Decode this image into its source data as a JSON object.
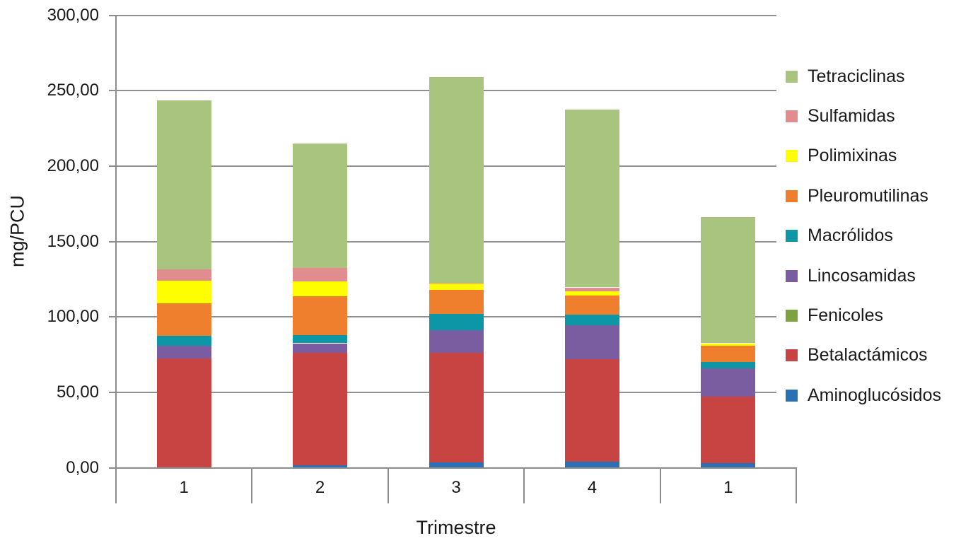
{
  "chart_data": {
    "type": "bar",
    "stacked": true,
    "title": "",
    "xlabel": "Trimestre",
    "ylabel": "mg/PCU",
    "ylim": [
      0,
      300
    ],
    "ytick_step": 50,
    "ytick_labels": [
      "0,00",
      "50,00",
      "100,00",
      "150,00",
      "200,00",
      "250,00",
      "300,00"
    ],
    "grid": true,
    "categories": [
      "1",
      "2",
      "3",
      "4",
      "1"
    ],
    "series": [
      {
        "name": "Aminoglucósidos",
        "color": "#2B70B5",
        "values": [
          0,
          1.5,
          3.5,
          4,
          3
        ]
      },
      {
        "name": "Betalactámicos",
        "color": "#C74442",
        "values": [
          72.5,
          74.5,
          72.5,
          68,
          44
        ]
      },
      {
        "name": "Fenicoles",
        "color": "#7CA33E",
        "values": [
          0,
          0,
          0,
          0,
          0
        ]
      },
      {
        "name": "Lincosamidas",
        "color": "#7A5CA1",
        "values": [
          8.5,
          6.5,
          15,
          22.5,
          19
        ]
      },
      {
        "name": "Macrólidos",
        "color": "#0D96A6",
        "values": [
          6.5,
          5.5,
          11,
          7,
          4
        ]
      },
      {
        "name": "Pleuromutilinas",
        "color": "#EF7F2C",
        "values": [
          21.5,
          25.5,
          16,
          12.5,
          11
        ]
      },
      {
        "name": "Polimixinas",
        "color": "#FEFE00",
        "values": [
          15,
          10,
          4,
          3,
          1.5
        ]
      },
      {
        "name": "Sulfamidas",
        "color": "#E18D90",
        "values": [
          7.5,
          9,
          0.5,
          2.5,
          0
        ]
      },
      {
        "name": "Tetraciclinas",
        "color": "#A9C47F",
        "values": [
          112,
          82.5,
          136.5,
          118,
          83.5
        ]
      }
    ],
    "legend": {
      "position": "right",
      "items_top_to_bottom": [
        "Tetraciclinas",
        "Sulfamidas",
        "Polimixinas",
        "Pleuromutilinas",
        "Macrólidos",
        "Lincosamidas",
        "Fenicoles",
        "Betalactámicos",
        "Aminoglucósidos"
      ]
    }
  },
  "colors": {
    "background": "#FFFFFF",
    "gridline": "#909090",
    "axis": "#8C8C8C",
    "text": "#1A1A1A"
  }
}
